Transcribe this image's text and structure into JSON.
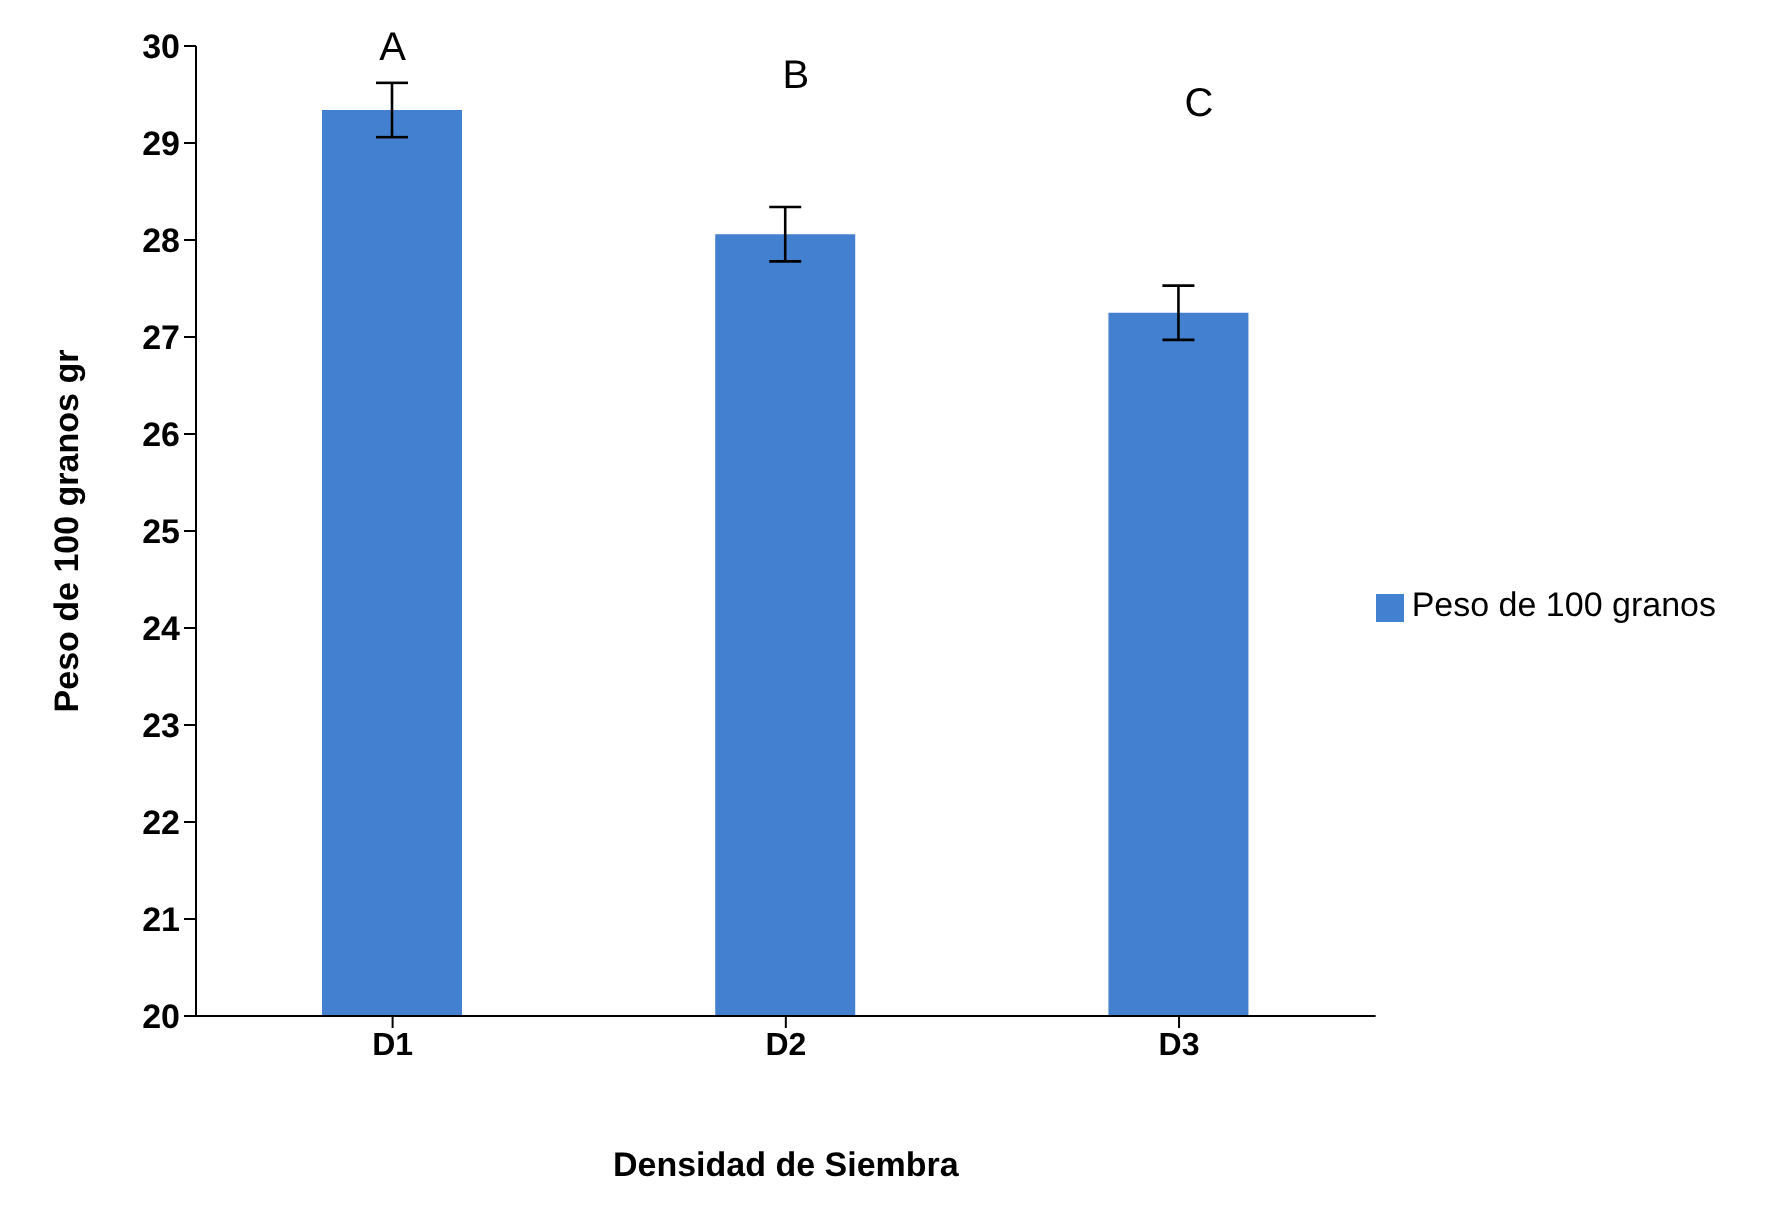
{
  "chart_data": {
    "type": "bar",
    "xlabel": "Densidad de Siembra",
    "ylabel": "Peso de 100 granos gr",
    "categories": [
      "D1",
      "D2",
      "D3"
    ],
    "series": [
      {
        "name": "Peso de 100 granos",
        "color": "#4381d0",
        "values": [
          29.34,
          28.06,
          27.25
        ],
        "errors": [
          0.28,
          0.28,
          0.28
        ]
      }
    ],
    "ylim": [
      20,
      30
    ],
    "yticks": [
      20,
      21,
      22,
      23,
      24,
      25,
      26,
      27,
      28,
      29,
      30
    ],
    "grid": false,
    "legend": "right",
    "annotations": [
      "A",
      "B",
      "C"
    ]
  }
}
